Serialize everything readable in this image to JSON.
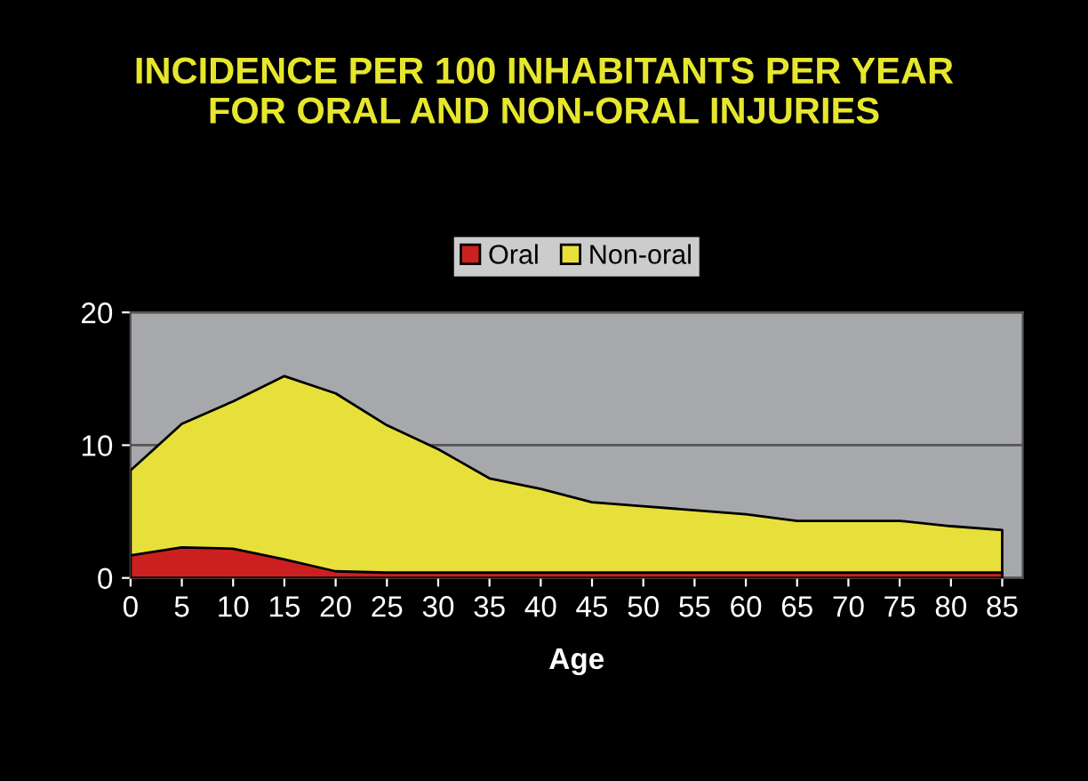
{
  "chart_data": {
    "type": "area",
    "title": "INCIDENCE PER 100 INHABITANTS PER YEAR\nFOR ORAL AND NON-ORAL INJURIES",
    "xlabel": "Age",
    "x": [
      0,
      5,
      10,
      15,
      20,
      25,
      30,
      35,
      40,
      45,
      50,
      55,
      60,
      65,
      70,
      75,
      80,
      85
    ],
    "series": [
      {
        "name": "Oral",
        "color": "#cc2020",
        "values": [
          1.7,
          2.3,
          2.2,
          1.4,
          0.5,
          0.4,
          0.4,
          0.4,
          0.4,
          0.4,
          0.4,
          0.4,
          0.4,
          0.4,
          0.4,
          0.4,
          0.4,
          0.4
        ]
      },
      {
        "name": "Non-oral",
        "color": "#e8e03a",
        "values": [
          8.1,
          11.6,
          13.3,
          15.2,
          13.9,
          11.5,
          9.7,
          7.5,
          6.7,
          5.7,
          5.4,
          5.1,
          4.8,
          4.3,
          4.3,
          4.3,
          3.9,
          3.6
        ]
      }
    ],
    "xlim": [
      0,
      87
    ],
    "xticks": [
      0,
      5,
      10,
      15,
      20,
      25,
      30,
      35,
      40,
      45,
      50,
      55,
      60,
      65,
      70,
      75,
      80,
      85
    ],
    "ylim": [
      0,
      20
    ],
    "yticks": [
      0,
      10,
      20
    ],
    "grid": "y",
    "legend": "top"
  }
}
